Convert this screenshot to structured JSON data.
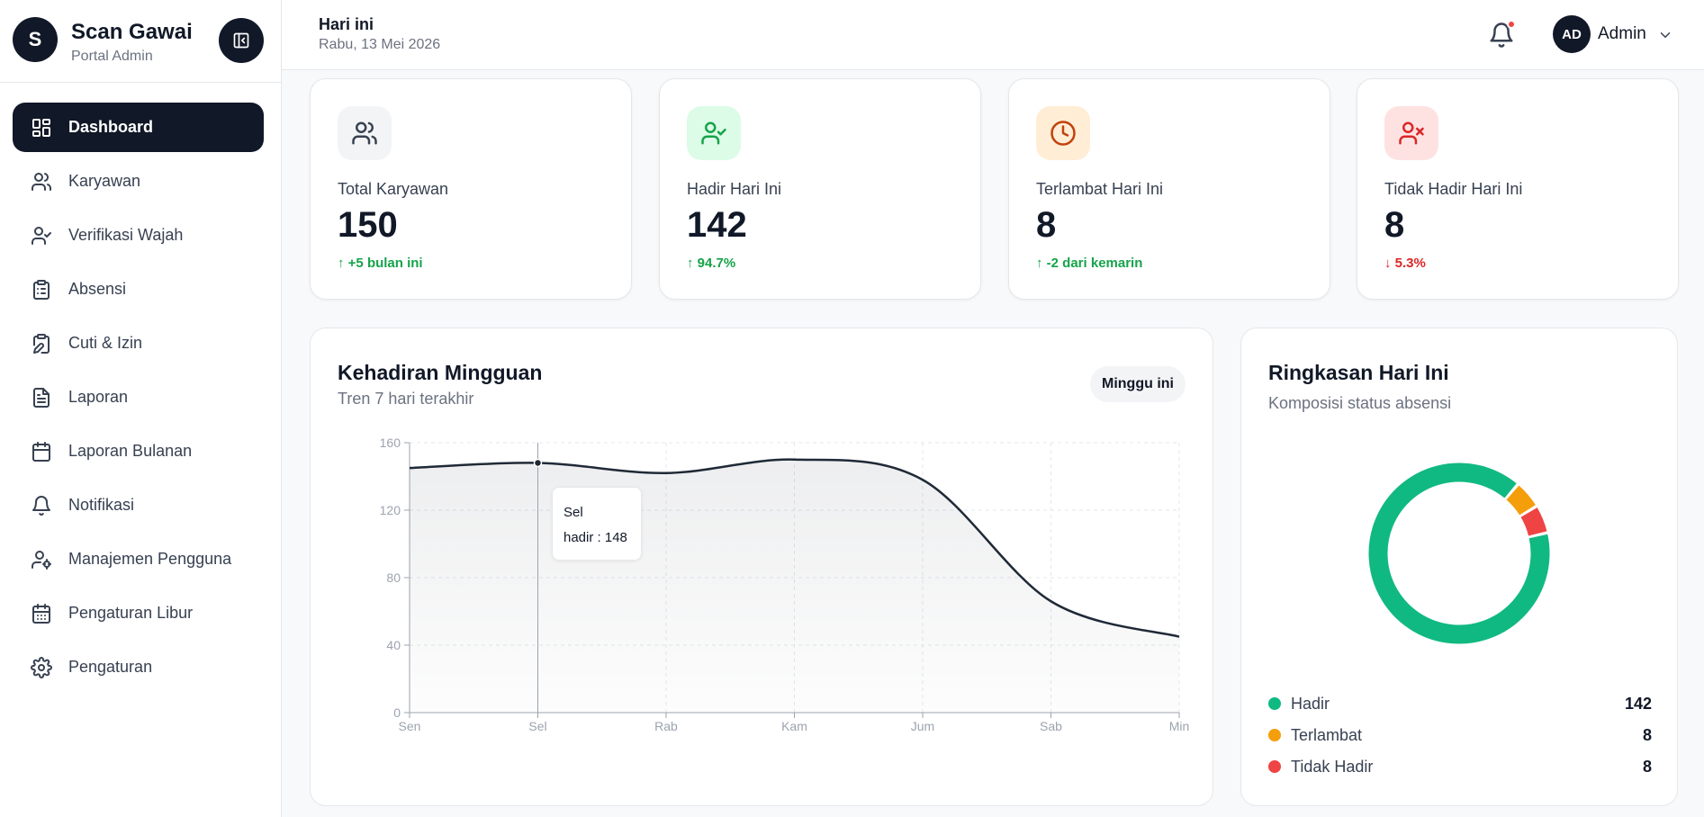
{
  "brand": {
    "logo_letter": "S",
    "name": "Scan Gawai",
    "subtitle": "Portal Admin"
  },
  "sidebar": {
    "items": [
      {
        "label": "Dashboard",
        "icon": "dashboard-icon",
        "active": true
      },
      {
        "label": "Karyawan",
        "icon": "users-icon"
      },
      {
        "label": "Verifikasi Wajah",
        "icon": "user-check-icon"
      },
      {
        "label": "Absensi",
        "icon": "clipboard-list-icon"
      },
      {
        "label": "Cuti & Izin",
        "icon": "clipboard-edit-icon"
      },
      {
        "label": "Laporan",
        "icon": "file-text-icon"
      },
      {
        "label": "Laporan Bulanan",
        "icon": "calendar-icon"
      },
      {
        "label": "Notifikasi",
        "icon": "bell-icon"
      },
      {
        "label": "Manajemen Pengguna",
        "icon": "user-cog-icon"
      },
      {
        "label": "Pengaturan Libur",
        "icon": "calendar-days-icon"
      },
      {
        "label": "Pengaturan",
        "icon": "gear-icon"
      }
    ]
  },
  "header": {
    "title": "Hari ini",
    "date": "Rabu, 13 Mei 2026",
    "user_initials": "AD",
    "user_name": "Admin"
  },
  "stats": [
    {
      "label": "Total Karyawan",
      "value": "150",
      "trend": "+5 bulan ini",
      "direction": "up",
      "icon": "users-icon",
      "icon_bg": "#f3f4f6",
      "icon_color": "#374151"
    },
    {
      "label": "Hadir Hari Ini",
      "value": "142",
      "trend": "94.7%",
      "direction": "up",
      "icon": "user-check-icon",
      "icon_bg": "#dcfce7",
      "icon_color": "#16a34a"
    },
    {
      "label": "Terlambat Hari Ini",
      "value": "8",
      "trend": "-2 dari kemarin",
      "direction": "up",
      "icon": "clock-icon",
      "icon_bg": "#ffedd5",
      "icon_color": "#c2410c"
    },
    {
      "label": "Tidak Hadir Hari Ini",
      "value": "8",
      "trend": "5.3%",
      "direction": "down",
      "icon": "user-x-icon",
      "icon_bg": "#fee2e2",
      "icon_color": "#dc2626"
    }
  ],
  "weekly": {
    "title": "Kehadiran Mingguan",
    "subtitle": "Tren 7 hari terakhir",
    "range_button": "Minggu ini",
    "tooltip": {
      "day": "Sel",
      "line": "hadir : 148"
    }
  },
  "summary": {
    "title": "Ringkasan Hari Ini",
    "subtitle": "Komposisi status absensi",
    "items": [
      {
        "label": "Hadir",
        "value": "142",
        "color": "#10b981"
      },
      {
        "label": "Terlambat",
        "value": "8",
        "color": "#f59e0b"
      },
      {
        "label": "Tidak Hadir",
        "value": "8",
        "color": "#ef4444"
      }
    ]
  },
  "chart_data": [
    {
      "type": "area",
      "x": [
        "Sen",
        "Sel",
        "Rab",
        "Kam",
        "Jum",
        "Sab",
        "Min"
      ],
      "series": [
        {
          "name": "hadir",
          "values": [
            145,
            148,
            142,
            150,
            138,
            66,
            45
          ]
        }
      ],
      "yticks": [
        0,
        40,
        80,
        120,
        160
      ],
      "ylim": [
        0,
        160
      ],
      "grid": true,
      "color": "#1f2937"
    },
    {
      "type": "pie",
      "categories": [
        "Hadir",
        "Terlambat",
        "Tidak Hadir"
      ],
      "values": [
        142,
        8,
        8
      ],
      "colors": [
        "#10b981",
        "#f59e0b",
        "#ef4444"
      ]
    }
  ]
}
